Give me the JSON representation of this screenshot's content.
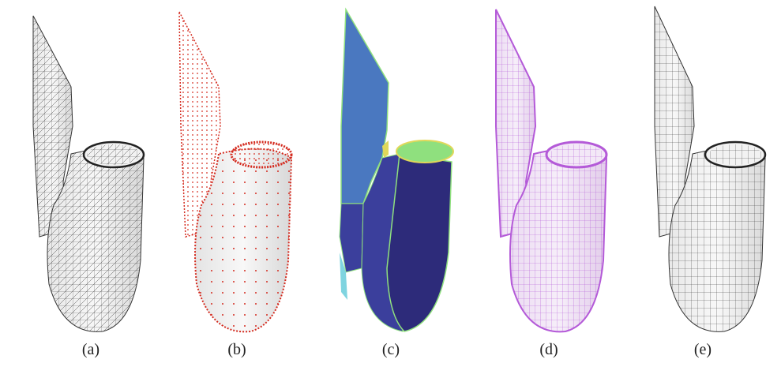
{
  "figure": {
    "panels": [
      {
        "label": "(a)",
        "style": "triangular-mesh",
        "line_color": "#3a3a3a"
      },
      {
        "label": "(b)",
        "style": "point-cloud",
        "point_color": "#d42a1e"
      },
      {
        "label": "(c)",
        "style": "segmented-surface-patches",
        "patch_colors": [
          "#4a78c0",
          "#2d2b7a",
          "#3b3f9c",
          "#8fe07e",
          "#e0d85a",
          "#7fd4e0"
        ]
      },
      {
        "label": "(d)",
        "style": "quad-mesh-overlay",
        "line_color": "#b45ad8"
      },
      {
        "label": "(e)",
        "style": "quad-mesh",
        "line_color": "#3a3a3a"
      }
    ]
  }
}
